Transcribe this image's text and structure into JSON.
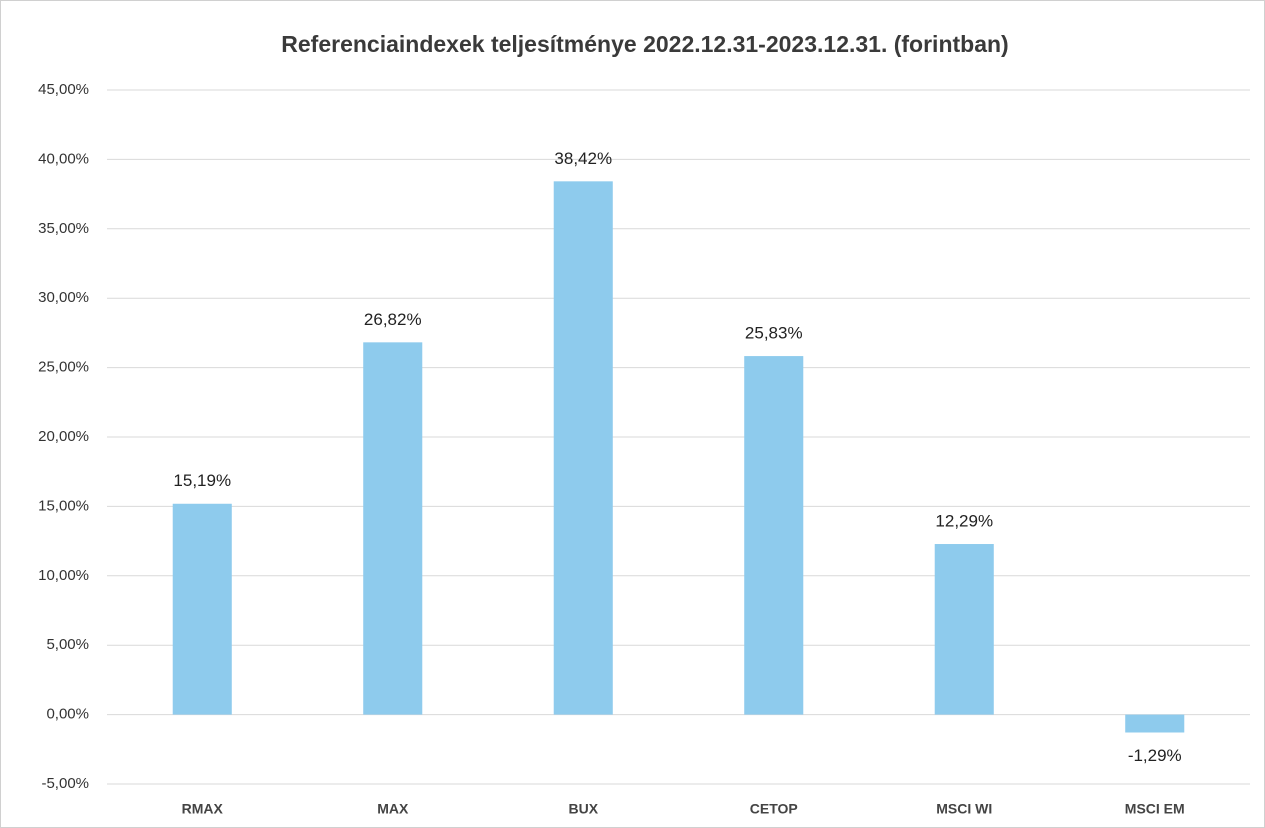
{
  "chart_data": {
    "type": "bar",
    "title": "Referenciaindexek teljesítménye 2022.12.31-2023.12.31. (forintban)",
    "categories": [
      "RMAX",
      "MAX",
      "BUX",
      "CETOP",
      "MSCI WI",
      "MSCI EM"
    ],
    "values": [
      15.19,
      26.82,
      38.42,
      25.83,
      12.29,
      -1.29
    ],
    "value_labels": [
      "15,19%",
      "26,82%",
      "38,42%",
      "25,83%",
      "12,29%",
      "-1,29%"
    ],
    "color": "#8ecbed",
    "ylim": [
      -5,
      45
    ],
    "yticks": [
      {
        "value": -5,
        "label": "-5,00%"
      },
      {
        "value": 0,
        "label": "0,00%"
      },
      {
        "value": 5,
        "label": "5,00%"
      },
      {
        "value": 10,
        "label": "10,00%"
      },
      {
        "value": 15,
        "label": "15,00%"
      },
      {
        "value": 20,
        "label": "20,00%"
      },
      {
        "value": 25,
        "label": "25,00%"
      },
      {
        "value": 30,
        "label": "30,00%"
      },
      {
        "value": 35,
        "label": "35,00%"
      },
      {
        "value": 40,
        "label": "40,00%"
      },
      {
        "value": 45,
        "label": "45,00%"
      }
    ],
    "grid": true
  }
}
